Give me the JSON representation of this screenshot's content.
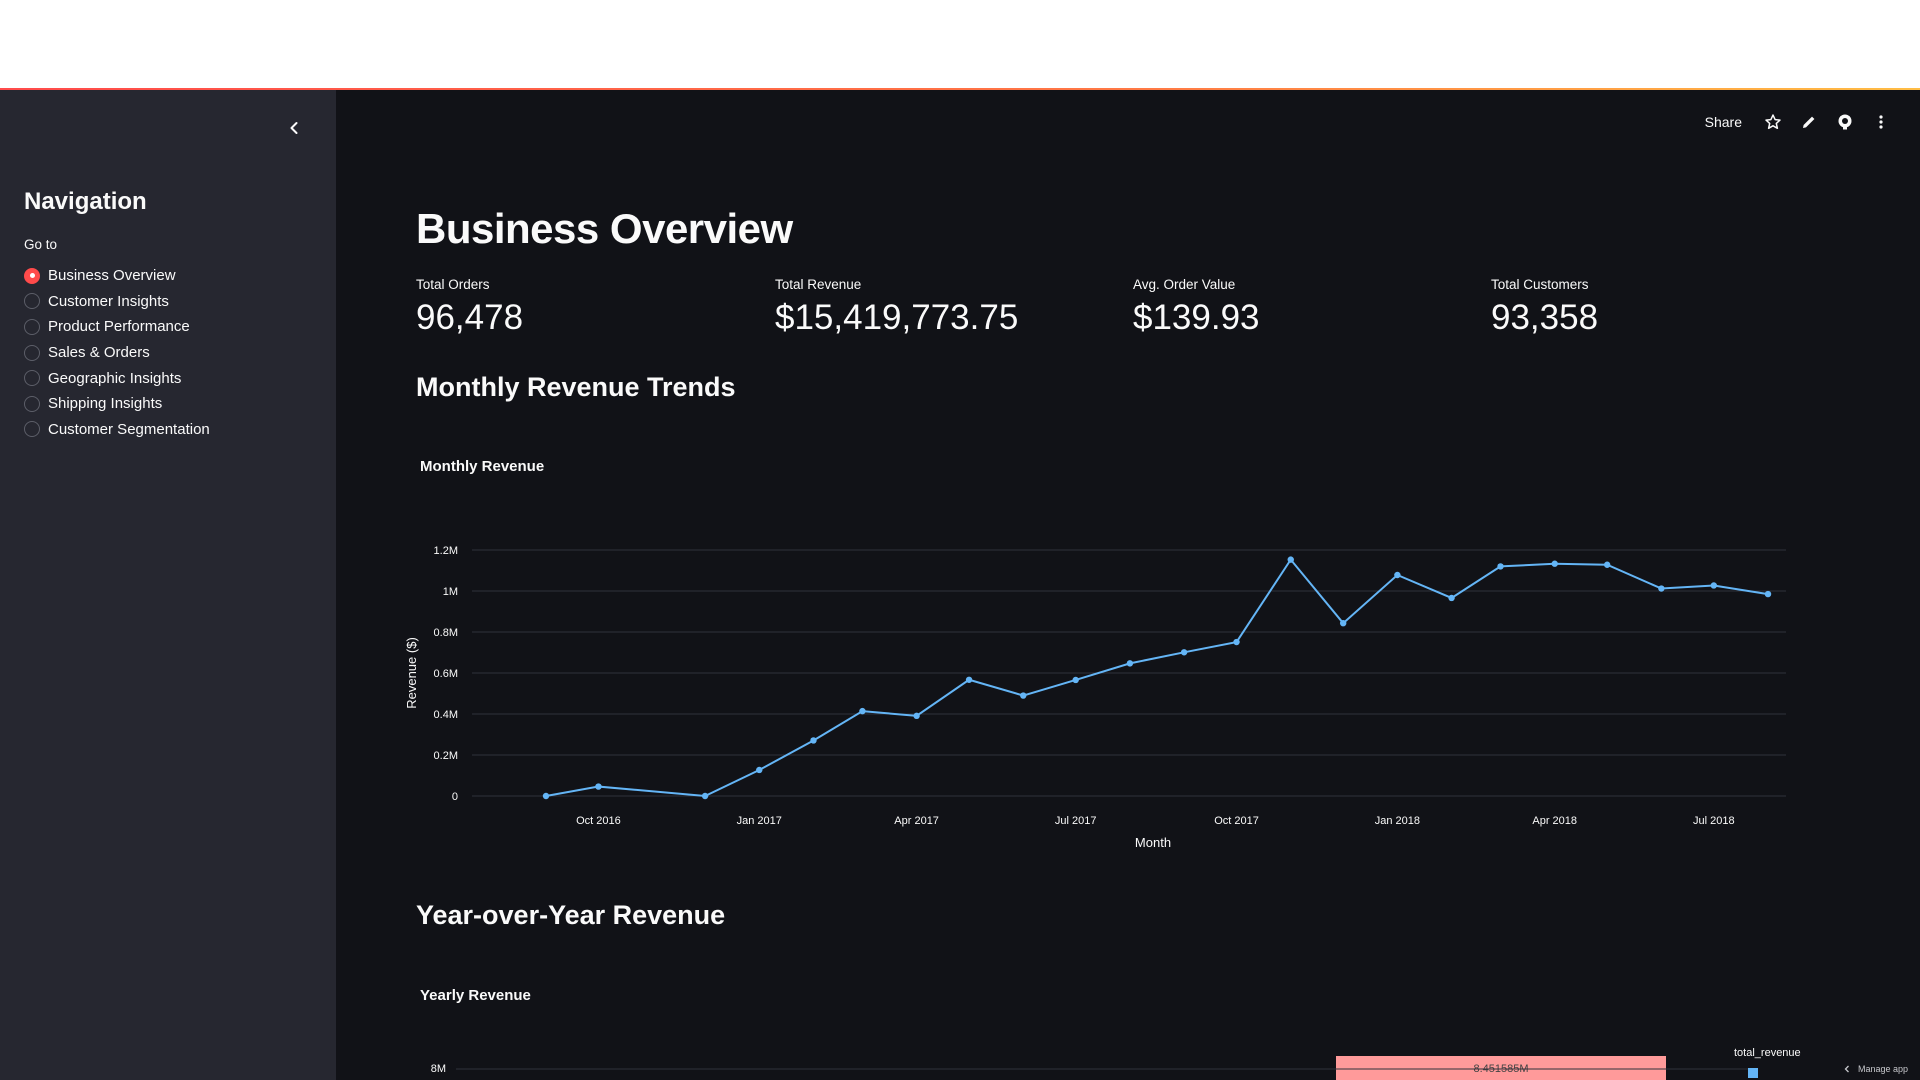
{
  "sidebar": {
    "title": "Navigation",
    "radio_label": "Go to",
    "items": [
      {
        "label": "Business Overview",
        "selected": true
      },
      {
        "label": "Customer Insights",
        "selected": false
      },
      {
        "label": "Product Performance",
        "selected": false
      },
      {
        "label": "Sales & Orders",
        "selected": false
      },
      {
        "label": "Geographic Insights",
        "selected": false
      },
      {
        "label": "Shipping Insights",
        "selected": false
      },
      {
        "label": "Customer Segmentation",
        "selected": false
      }
    ]
  },
  "toolbar": {
    "share_label": "Share",
    "icons": [
      "star-icon",
      "pencil-icon",
      "github-icon",
      "more-vertical-icon"
    ]
  },
  "page": {
    "title": "Business Overview",
    "metrics": [
      {
        "label": "Total Orders",
        "value": "96,478"
      },
      {
        "label": "Total Revenue",
        "value": "$15,419,773.75"
      },
      {
        "label": "Avg. Order Value",
        "value": "$139.93"
      },
      {
        "label": "Total Customers",
        "value": "93,358"
      }
    ],
    "section1": "Monthly Revenue Trends",
    "section2": "Year-over-Year Revenue"
  },
  "footer": {
    "manage_label": "Manage app"
  },
  "colors": {
    "accent": "#ff4b4b",
    "line": "#64b5f6",
    "bar": "#ff9a9a",
    "background": "#111217",
    "sidebar": "#262730"
  },
  "chart_data": [
    {
      "type": "line",
      "title": "Monthly Revenue",
      "xlabel": "Month",
      "ylabel": "Revenue ($)",
      "x": [
        "2016-09",
        "2016-10",
        "2016-12",
        "2017-01",
        "2017-02",
        "2017-03",
        "2017-04",
        "2017-05",
        "2017-06",
        "2017-07",
        "2017-08",
        "2017-09",
        "2017-10",
        "2017-11",
        "2017-12",
        "2018-01",
        "2018-02",
        "2018-03",
        "2018-04",
        "2018-05",
        "2018-06",
        "2018-07",
        "2018-08"
      ],
      "values": [
        0,
        46000,
        0,
        127000,
        271000,
        414000,
        391000,
        567000,
        490000,
        566000,
        647000,
        701000,
        751000,
        1153000,
        843000,
        1078000,
        966000,
        1120000,
        1133000,
        1128000,
        1012000,
        1027000,
        985000
      ],
      "ylim": [
        0,
        1200000
      ],
      "yticks": [
        "0",
        "0.2M",
        "0.4M",
        "0.6M",
        "0.8M",
        "1M",
        "1.2M"
      ],
      "xticks": [
        {
          "date": "2016-10",
          "label": "Oct 2016"
        },
        {
          "date": "2017-01",
          "label": "Jan 2017"
        },
        {
          "date": "2017-04",
          "label": "Apr 2017"
        },
        {
          "date": "2017-07",
          "label": "Jul 2017"
        },
        {
          "date": "2017-10",
          "label": "Oct 2017"
        },
        {
          "date": "2018-01",
          "label": "Jan 2018"
        },
        {
          "date": "2018-04",
          "label": "Apr 2018"
        },
        {
          "date": "2018-07",
          "label": "Jul 2018"
        }
      ],
      "grid": true
    },
    {
      "type": "bar",
      "title": "Yearly Revenue",
      "yticks": [
        "8M"
      ],
      "values": [
        8451585
      ],
      "data_labels": [
        "8.451585M"
      ],
      "legend_title": "total_revenue",
      "legend_placement": "right"
    }
  ]
}
